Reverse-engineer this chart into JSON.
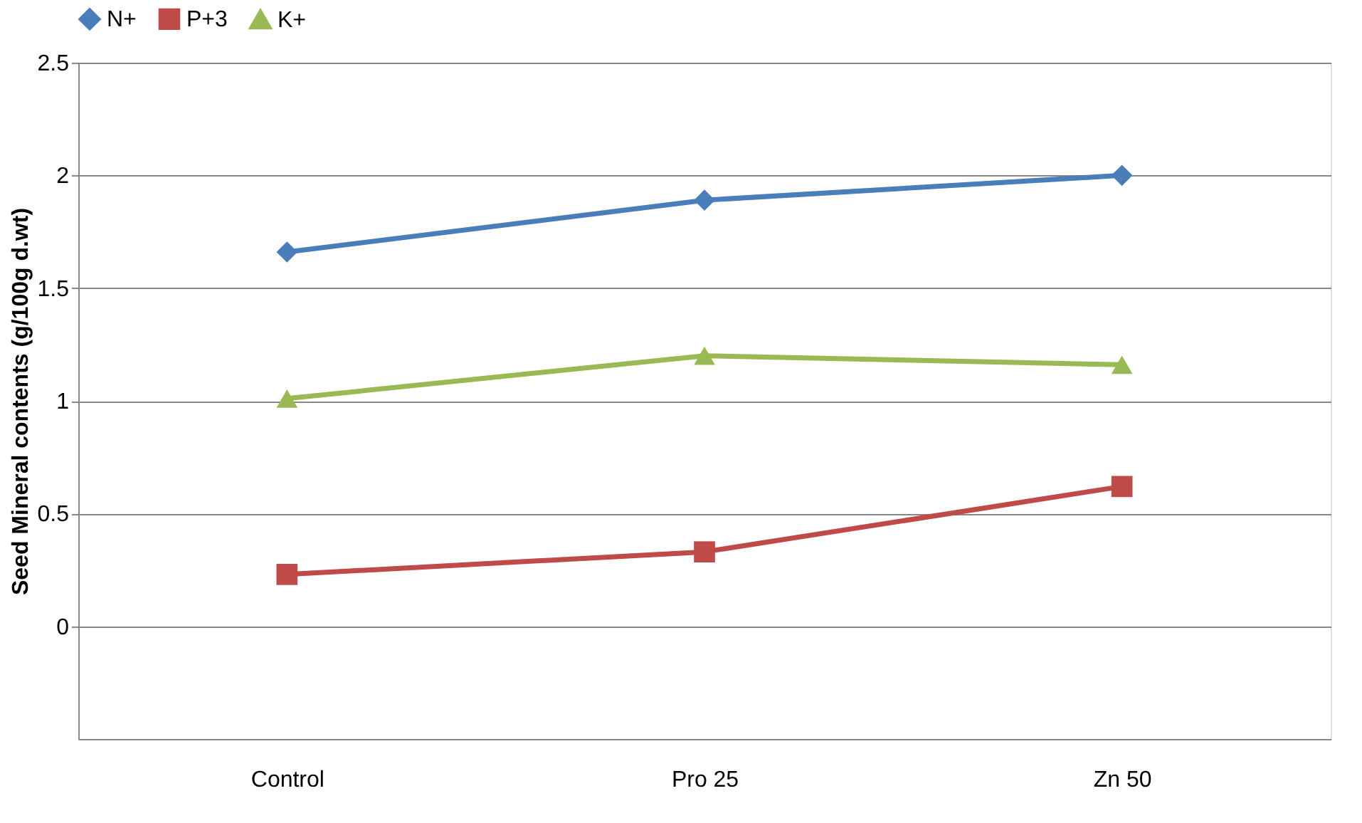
{
  "chart_data": {
    "type": "line",
    "ylabel": "Seed Mineral contents (g/100g d.wt)",
    "categories": [
      "Control",
      "Pro 25",
      "Zn 50"
    ],
    "series": [
      {
        "name": "N+",
        "color": "#4a7ebb",
        "marker": "diamond",
        "values": [
          1.66,
          1.89,
          2.0
        ]
      },
      {
        "name": "P+3",
        "color": "#be4b48",
        "marker": "square",
        "values": [
          0.23,
          0.33,
          0.62
        ]
      },
      {
        "name": "K+",
        "color": "#98b954",
        "marker": "triangle",
        "values": [
          1.01,
          1.2,
          1.16
        ]
      }
    ],
    "ylim": [
      -0.5,
      2.5
    ],
    "yticks": [
      0,
      0.5,
      1,
      1.5,
      2,
      2.5
    ],
    "grid": "y",
    "legend": "top"
  }
}
